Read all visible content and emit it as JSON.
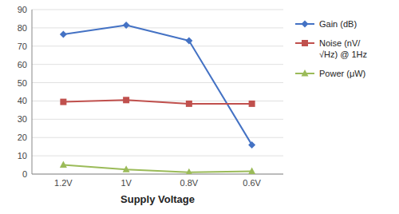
{
  "chart_data": {
    "type": "line",
    "categories": [
      "1.2V",
      "1V",
      "0.8V",
      "0.6V"
    ],
    "xlabel": "Supply Voltage",
    "series": [
      {
        "name": "Gain (dB)",
        "color": "#4472C4",
        "marker": "diamond",
        "values": [
          76.5,
          81.5,
          73.0,
          16.0
        ]
      },
      {
        "name": "Noise (nV/\n√Hz) @ 1Hz",
        "color": "#C0504D",
        "marker": "square",
        "values": [
          39.5,
          40.5,
          38.5,
          38.5
        ]
      },
      {
        "name": "Power (μW)",
        "color": "#9BBB59",
        "marker": "triangle",
        "values": [
          5.0,
          2.5,
          1.0,
          1.5
        ]
      }
    ],
    "ylim": [
      0,
      90
    ],
    "yticks": [
      0,
      10,
      20,
      30,
      40,
      50,
      60,
      70,
      80,
      90
    ],
    "grid": true,
    "legend": "right"
  }
}
